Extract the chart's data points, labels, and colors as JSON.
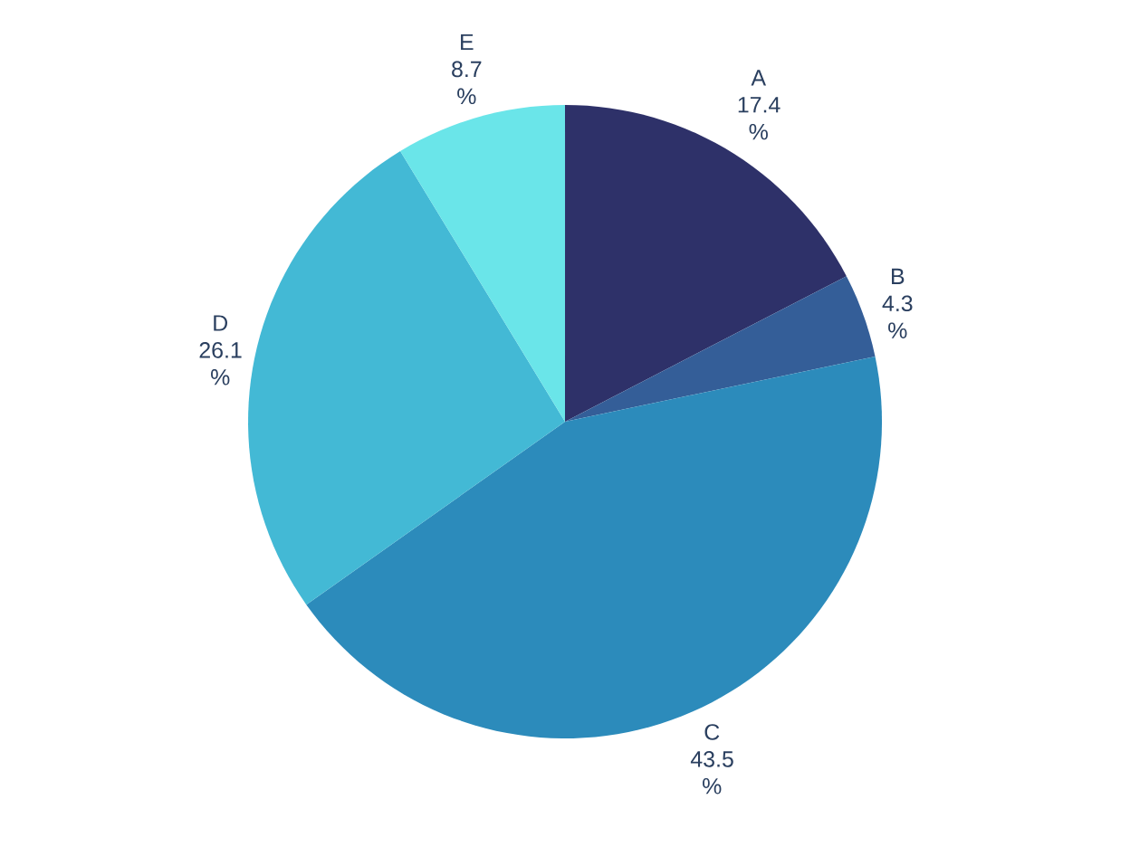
{
  "chart_data": {
    "type": "pie",
    "categories": [
      "A",
      "B",
      "C",
      "D",
      "E"
    ],
    "values": [
      17.4,
      4.3,
      43.5,
      26.1,
      8.7
    ],
    "value_labels": [
      "17.4 %",
      "4.3 %",
      "43.5 %",
      "26.1 %",
      "8.7 %"
    ],
    "colors": [
      "#2e3169",
      "#345e98",
      "#2c8bbb",
      "#43b9d5",
      "#6ae5e9"
    ]
  }
}
